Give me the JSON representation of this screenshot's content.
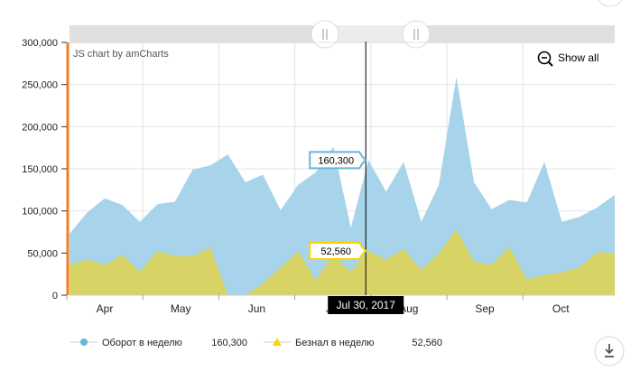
{
  "credit": "JS chart by amCharts",
  "show_all_label": "Show all",
  "cursor": {
    "date_label": "Jul 30, 2017",
    "values": [
      "160,300",
      "52,560"
    ]
  },
  "legend": [
    {
      "name": "Оборот в неделю",
      "value": "160,300",
      "marker": "circle",
      "color": "#67b7dc"
    },
    {
      "name": "Безнал в неделю",
      "value": "52,560",
      "marker": "triangle",
      "color": "#fdd400"
    }
  ],
  "icons": {
    "zoom_out": "magnifier-minus-icon",
    "export": "download-icon",
    "scroll_grip": "grip-icon"
  },
  "colors": {
    "series1_fill": "#a7d4ea",
    "series2_fill": "#d9d45e",
    "axis_accent": "#f07e26",
    "grid": "#e3e3e3"
  },
  "chart_data": {
    "type": "area",
    "x_label_format": "week",
    "y_ticks": [
      "0",
      "50,000",
      "100,000",
      "150,000",
      "200,000",
      "250,000",
      "300,000"
    ],
    "ylim": [
      0,
      300000
    ],
    "x_month_labels": [
      "Apr",
      "May",
      "Jun",
      "Jul",
      "Aug",
      "Sep",
      "Oct"
    ],
    "grid": true,
    "legend_position": "bottom",
    "series": [
      {
        "name": "Оборот в неделю",
        "values": [
          73000,
          98000,
          115000,
          107000,
          87000,
          108000,
          111000,
          149000,
          154000,
          167000,
          134000,
          143000,
          101000,
          131000,
          146000,
          176000,
          80000,
          160300,
          123000,
          158000,
          87000,
          131000,
          259000,
          134000,
          102000,
          113000,
          110000,
          158000,
          87000,
          93000,
          104000,
          119000
        ]
      },
      {
        "name": "Безнал в неделю",
        "values": [
          36000,
          42000,
          36000,
          48000,
          28000,
          52000,
          47000,
          46000,
          57000,
          0,
          0,
          14000,
          33000,
          52000,
          18000,
          48000,
          28000,
          52560,
          42000,
          55000,
          30000,
          50000,
          78000,
          40000,
          36000,
          57000,
          19000,
          24000,
          27000,
          33000,
          51000,
          50000
        ]
      }
    ]
  }
}
